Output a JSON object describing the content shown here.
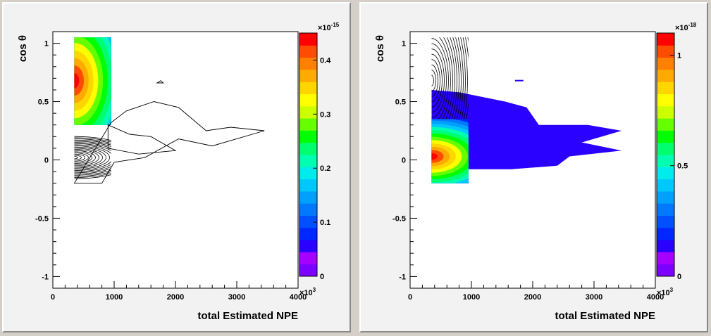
{
  "chart_data": [
    {
      "type": "heatmap",
      "subtype": "contour",
      "xlabel": "total Estimated NPE",
      "ylabel": "cos θ",
      "x_tick_labels": [
        "0",
        "1000",
        "2000",
        "3000",
        "4000"
      ],
      "x_multiplier": "×10",
      "x_multiplier_exp": "3",
      "y_tick_labels": [
        "1",
        "0.5",
        "0",
        "-0.5",
        "-1"
      ],
      "xlim": [
        0,
        4000
      ],
      "ylim": [
        -1.1,
        1.1
      ],
      "colorbar": {
        "tick_labels": [
          "0.4",
          "0.3",
          "0.2",
          "0.1",
          "0"
        ],
        "tick_values": [
          0.4,
          0.3,
          0.2,
          0.1,
          0
        ],
        "range": [
          0,
          0.45
        ],
        "multiplier": "×10",
        "multiplier_exp": "-15"
      },
      "filled_region": {
        "x_range": [
          350,
          950
        ],
        "y_range": [
          0.3,
          1.05
        ],
        "peak": {
          "x": 350,
          "y": 0.68
        }
      },
      "dense_contour_region": {
        "x_range": [
          350,
          800
        ],
        "y_range": [
          -0.2,
          0.3
        ],
        "peak": {
          "x": 350,
          "y": 0.02
        }
      },
      "max_extent": {
        "x": 3450,
        "y": 0.25
      }
    },
    {
      "type": "heatmap",
      "subtype": "contour",
      "xlabel": "total Estimated NPE",
      "ylabel": "cos θ",
      "x_tick_labels": [
        "0",
        "1000",
        "2000",
        "3000",
        "4000"
      ],
      "x_multiplier": "×10",
      "x_multiplier_exp": "3",
      "y_tick_labels": [
        "1",
        "0.5",
        "0",
        "-0.5",
        "-1"
      ],
      "xlim": [
        0,
        4000
      ],
      "ylim": [
        -1.1,
        1.1
      ],
      "colorbar": {
        "tick_labels": [
          "1",
          "0.5",
          "0"
        ],
        "tick_values": [
          1,
          0.5,
          0
        ],
        "range": [
          0,
          1.1
        ],
        "multiplier": "×10",
        "multiplier_exp": "-18"
      },
      "filled_region": {
        "x_range": [
          350,
          3450
        ],
        "y_range": [
          -0.2,
          0.6
        ],
        "peak": {
          "x": 350,
          "y": 0.03
        }
      },
      "dense_contour_region": {
        "x_range": [
          350,
          950
        ],
        "y_range": [
          0.35,
          1.05
        ],
        "peak": {
          "x": 350,
          "y": 0.68
        }
      },
      "max_extent": {
        "x": 3450,
        "y": 0.25
      }
    }
  ],
  "palette": [
    "#7a00ff",
    "#a600ff",
    "#2a00ff",
    "#0027ff",
    "#0050ff",
    "#0078ff",
    "#00a0ff",
    "#00c8ff",
    "#00ecec",
    "#00ffb0",
    "#00ff6e",
    "#00ff00",
    "#66ff00",
    "#ccff00",
    "#ffff00",
    "#ffd600",
    "#ffaa00",
    "#ff8000",
    "#ff4c00",
    "#ff0000"
  ]
}
